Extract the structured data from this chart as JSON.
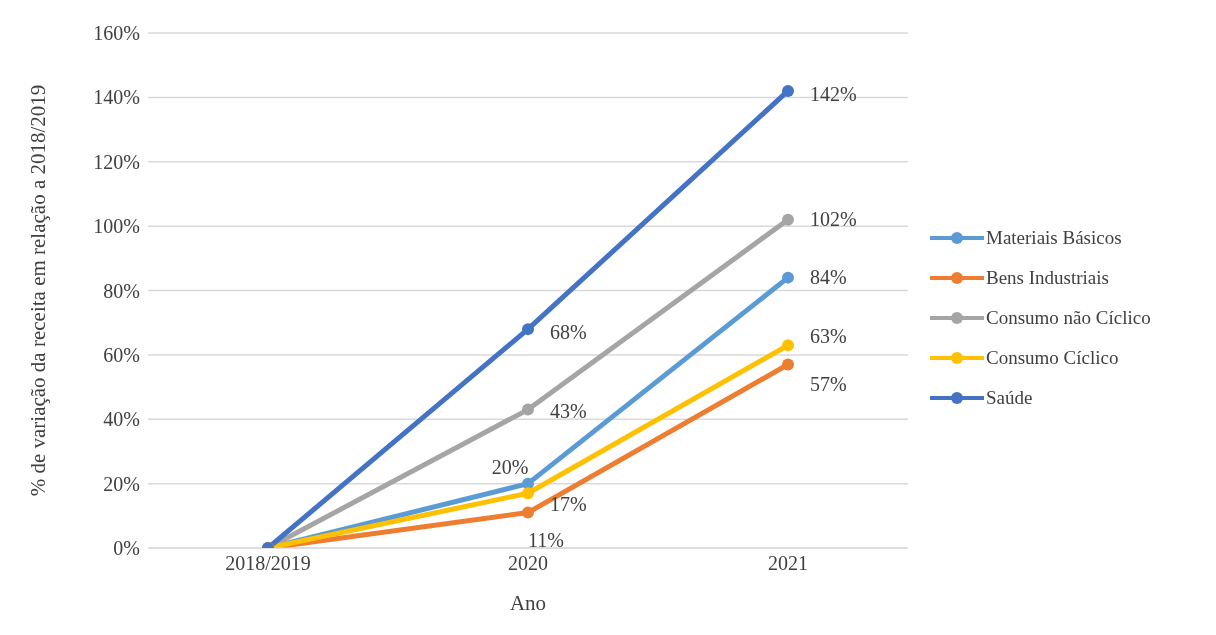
{
  "chart_data": {
    "type": "line",
    "xlabel": "Ano",
    "ylabel": "% de variação da receita em relação a 2018/2019",
    "categories": [
      "2018/2019",
      "2020",
      "2021"
    ],
    "series": [
      {
        "name": "Materiais Básicos",
        "color": "#5b9bd5",
        "values": [
          0,
          20,
          84
        ],
        "value_labels": [
          null,
          "20%",
          "84%"
        ]
      },
      {
        "name": "Bens Industriais",
        "color": "#ed7d31",
        "values": [
          0,
          11,
          57
        ],
        "value_labels": [
          null,
          "11%",
          "57%"
        ]
      },
      {
        "name": "Consumo não Cíclico",
        "color": "#a5a5a5",
        "values": [
          0,
          43,
          102
        ],
        "value_labels": [
          null,
          "43%",
          "102%"
        ]
      },
      {
        "name": "Consumo Cíclico",
        "color": "#ffc000",
        "values": [
          0,
          17,
          63
        ],
        "value_labels": [
          null,
          "17%",
          "63%"
        ]
      },
      {
        "name": "Saúde",
        "color": "#4472c4",
        "values": [
          0,
          68,
          142
        ],
        "value_labels": [
          null,
          "68%",
          "142%"
        ]
      }
    ],
    "ylim": [
      0,
      160
    ],
    "yticks": [
      {
        "value": 0,
        "label": "0%"
      },
      {
        "value": 20,
        "label": "20%"
      },
      {
        "value": 40,
        "label": "40%"
      },
      {
        "value": 60,
        "label": "60%"
      },
      {
        "value": 80,
        "label": "80%"
      },
      {
        "value": 100,
        "label": "100%"
      },
      {
        "value": 120,
        "label": "120%"
      },
      {
        "value": 140,
        "label": "140%"
      },
      {
        "value": 160,
        "label": "160%"
      }
    ],
    "grid": "y",
    "legend": "right",
    "marker": "circle",
    "line_style": "solid"
  }
}
